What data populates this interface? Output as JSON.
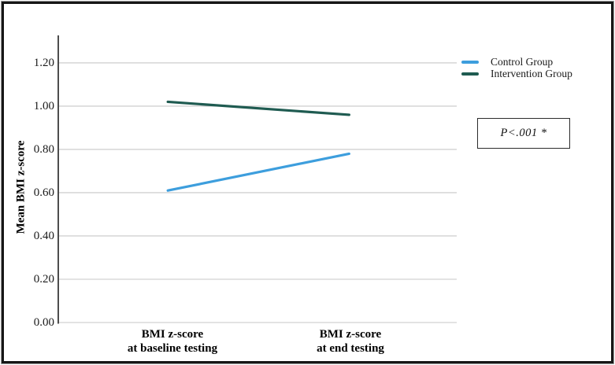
{
  "chart_data": {
    "type": "line",
    "title": "",
    "ylabel": "Mean BMI z-score",
    "xlabel": "",
    "categories": [
      "BMI z-score at baseline testing",
      "BMI z-score at end testing"
    ],
    "x_tick_lines": [
      {
        "line1": "BMI z-score",
        "line2": "at baseline testing"
      },
      {
        "line1": "BMI z-score",
        "line2": "at end testing"
      }
    ],
    "series": [
      {
        "name": "Control Group",
        "values": [
          0.61,
          0.78
        ],
        "color": "#3D9EDD"
      },
      {
        "name": "Intervention Group",
        "values": [
          1.02,
          0.96
        ],
        "color": "#1F5B51"
      }
    ],
    "ylim": [
      0,
      1.327
    ],
    "yticks": [
      0,
      0.2,
      0.4,
      0.6,
      0.8,
      1.0,
      1.2
    ],
    "ytick_labels": [
      "0.00",
      "0.20",
      "0.40",
      "0.60",
      "0.80",
      "1.00",
      "1.20"
    ],
    "grid": true,
    "legend_position": "top-right"
  },
  "legend": {
    "items": [
      {
        "label": "Control Group",
        "color": "#3D9EDD"
      },
      {
        "label": "Intervention Group",
        "color": "#1F5B51"
      }
    ]
  },
  "annotation": {
    "text": "P<.001 *"
  }
}
